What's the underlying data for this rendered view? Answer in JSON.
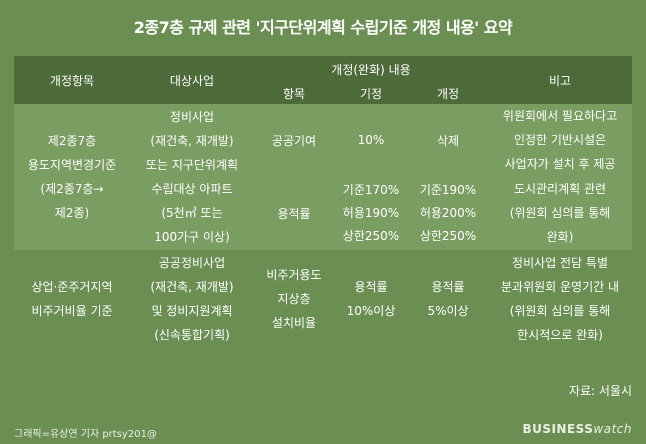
{
  "title": "2종7층 규제 관련 '지구단위계획 수립기준 개정 내용' 요약",
  "header": {
    "col1": "개정항목",
    "col2": "대상사업",
    "group": "개정(완화) 내용",
    "sub1": "항목",
    "sub2": "기정",
    "sub3": "개정",
    "col_note": "비고"
  },
  "rows": {
    "r1": {
      "item": [
        "제2종7층",
        "용도지역변경기준",
        "(제2종7층→",
        "제2종)"
      ],
      "target": [
        "정비사업",
        "(재건축, 재개발)",
        "또는 지구단위계획"
      ],
      "field": "공공기여",
      "before": "10%",
      "after": "삭제",
      "note": [
        "위원회에서 필요하다고",
        "인정한 기반시설은",
        "사업자가 설치 후 제공"
      ]
    },
    "r2": {
      "target": [
        "수립대상 아파트",
        "(5천㎡ 또는",
        "100가구 이상)"
      ],
      "field": "용적률",
      "before": [
        "기준170%",
        "허용190%",
        "상한250%"
      ],
      "after": [
        "기준190%",
        "허용200%",
        "상한250%"
      ],
      "note": [
        "도시관리계획 관련",
        "(위원회 심의를 통해",
        "완화)"
      ]
    },
    "r3": {
      "item": [
        "상업·준주거지역",
        "비주거비율 기준"
      ],
      "target": [
        "공공정비사업",
        "(재건축, 재개발)",
        "및 정비지원계획",
        "(신속통합기획)"
      ],
      "field": [
        "비주거용도",
        "지상층",
        "설치비율"
      ],
      "before": [
        "용적률",
        "10%이상"
      ],
      "after": [
        "용적률",
        "5%이상"
      ],
      "note": [
        "정비사업 전담 특별",
        "분과위원회 운영기간 내",
        "(위원회 심의를 통해",
        "한시적으로 완화)"
      ]
    }
  },
  "source": "자료: 서울시",
  "credit": "그래픽=유상연 기자 prtsy201@",
  "brand": {
    "part1": "BUSINESS",
    "part2": "watch"
  }
}
